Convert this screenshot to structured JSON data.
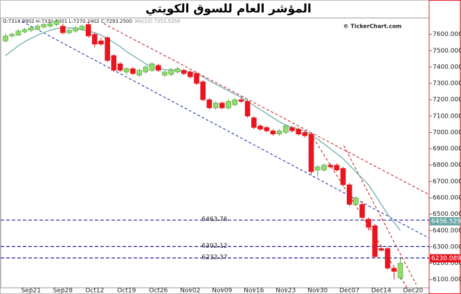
{
  "chart_data": {
    "type": "candlestick",
    "title": "المؤشر العام للسوق الكويتي",
    "ohlc_readout": "O:7318.9902 H:7330.6001 L:7270.2402 C:7293.2500",
    "ma_readout": "MA(10)  7353.5358",
    "watermark": "© TickerChart.com",
    "categories": [
      null,
      null,
      null,
      null,
      "Sep21",
      null,
      null,
      null,
      null,
      "Sep28",
      null,
      null,
      null,
      null,
      "Oct12",
      null,
      null,
      null,
      null,
      "Oct19",
      null,
      null,
      null,
      null,
      "Oct26",
      null,
      null,
      null,
      null,
      "Nov02",
      null,
      null,
      null,
      null,
      "Nov09",
      null,
      null,
      null,
      null,
      "Nov16",
      null,
      null,
      null,
      null,
      "Nov23",
      null,
      null,
      null,
      null,
      "Nov30",
      null,
      null,
      null,
      null,
      "Dec07",
      null,
      null,
      null,
      null,
      "Dec14",
      null,
      null,
      null,
      null,
      "Dec20"
    ],
    "open": [
      7560,
      7590,
      7595,
      7615,
      7625,
      7630,
      7645,
      7650,
      7660,
      7650,
      7610,
      7620,
      7630,
      7660,
      7600,
      7560,
      7580,
      7470,
      7420,
      7370,
      7390,
      7350,
      7370,
      7380,
      7410,
      7350,
      7355,
      7370,
      7380,
      7370,
      7360,
      7310,
      7200,
      7150,
      7180,
      7150,
      7170,
      7200,
      7190,
      7090,
      7040,
      7030,
      7010,
      6990,
      7000,
      7030,
      7020,
      7000,
      6990,
      6770,
      6770,
      6800,
      6800,
      6780,
      6680,
      6560,
      6560,
      6470,
      6430,
      6290,
      6290,
      6170,
      6110,
      null,
      null
    ],
    "high": [
      7605,
      7610,
      7630,
      7640,
      7650,
      7660,
      7670,
      7675,
      7690,
      7665,
      7635,
      7650,
      7660,
      7680,
      7610,
      7580,
      7590,
      7480,
      7430,
      7400,
      7400,
      7390,
      7410,
      7430,
      7420,
      7380,
      7395,
      7400,
      7390,
      7380,
      7370,
      7320,
      7210,
      7190,
      7190,
      7200,
      7210,
      7220,
      7200,
      7100,
      7050,
      7040,
      7020,
      7020,
      7050,
      7040,
      7030,
      7010,
      7000,
      6800,
      6810,
      6810,
      6810,
      6790,
      6690,
      6610,
      6580,
      6480,
      6440,
      6310,
      6300,
      6180,
      6230,
      null,
      null
    ],
    "low": [
      7550,
      7580,
      7590,
      7605,
      7615,
      7625,
      7635,
      7640,
      7650,
      7600,
      7600,
      7610,
      7620,
      7580,
      7520,
      7530,
      7430,
      7370,
      7370,
      7355,
      7350,
      7340,
      7360,
      7370,
      7370,
      7340,
      7345,
      7360,
      7350,
      7330,
      7290,
      7190,
      7140,
      7140,
      7140,
      7140,
      7160,
      7180,
      7090,
      7020,
      7010,
      7000,
      6980,
      6980,
      6990,
      7000,
      6980,
      6970,
      6740,
      6730,
      6760,
      6780,
      6760,
      6670,
      6550,
      6550,
      6470,
      6400,
      6230,
      6270,
      6160,
      6100,
      6100,
      null,
      null
    ],
    "close": [
      7590,
      7600,
      7620,
      7630,
      7640,
      7650,
      7660,
      7665,
      7680,
      7610,
      7625,
      7640,
      7650,
      7590,
      7540,
      7540,
      7440,
      7380,
      7380,
      7390,
      7360,
      7380,
      7400,
      7420,
      7380,
      7370,
      7385,
      7390,
      7360,
      7340,
      7300,
      7200,
      7150,
      7180,
      7150,
      7190,
      7200,
      7190,
      7100,
      7030,
      7020,
      7010,
      6990,
      7010,
      7040,
      7010,
      6990,
      6980,
      6760,
      6790,
      6800,
      6790,
      6770,
      6680,
      6560,
      6600,
      6480,
      6420,
      6240,
      6280,
      6170,
      6150,
      6200,
      null,
      null
    ],
    "up_color": "#8fdc6a",
    "down_color": "#e8141e",
    "ma": {
      "color": "#7fb5b5",
      "values": [
        7470,
        7500,
        7530,
        7555,
        7575,
        7595,
        7610,
        7625,
        7635,
        7640,
        7640,
        7635,
        7630,
        7620,
        7610,
        7595,
        7575,
        7550,
        7525,
        7495,
        7470,
        7445,
        7420,
        7400,
        7390,
        7385,
        7380,
        7378,
        7375,
        7370,
        7360,
        7340,
        7315,
        7295,
        7275,
        7255,
        7235,
        7215,
        7190,
        7165,
        7140,
        7115,
        7090,
        7065,
        7045,
        7030,
        7020,
        7010,
        6985,
        6960,
        6930,
        6900,
        6870,
        6840,
        6800,
        6760,
        6720,
        6680,
        6620,
        6560,
        6500,
        6450,
        6400,
        null,
        null
      ]
    },
    "ylim": [
      6050,
      7700
    ],
    "yticks": [
      {
        "value": 6100,
        "label": "6100.0000"
      },
      {
        "value": 6200,
        "label": "6200.0000"
      },
      {
        "value": 6300,
        "label": "6300.0000"
      },
      {
        "value": 6400,
        "label": "6400.0000"
      },
      {
        "value": 6500,
        "label": "6500.0000"
      },
      {
        "value": 6600,
        "label": "6600.0000"
      },
      {
        "value": 6700,
        "label": "6700.0000"
      },
      {
        "value": 6800,
        "label": "6800.0000"
      },
      {
        "value": 6900,
        "label": "6900.0000"
      },
      {
        "value": 7000,
        "label": "7000.0000"
      },
      {
        "value": 7100,
        "label": "7100.0000"
      },
      {
        "value": 7200,
        "label": "7200.0000"
      },
      {
        "value": 7300,
        "label": "7300.0000"
      },
      {
        "value": 7400,
        "label": "7400.0000"
      },
      {
        "value": 7500,
        "label": "7500.0000"
      },
      {
        "value": 7600,
        "label": "7600.0000"
      }
    ],
    "levels": [
      {
        "value": 6463.76,
        "label": "6463.76",
        "color": "#1a1aa6"
      },
      {
        "value": 6302.12,
        "label": "6302.12",
        "color": "#1a1aa6"
      },
      {
        "value": 6232.37,
        "label": "6232.37",
        "color": "#1a1aa6"
      }
    ],
    "price_tags": [
      {
        "value": 6456.5299,
        "label": "6456.5299",
        "color": "#6aa6a6"
      },
      {
        "value": 6230.0898,
        "label": "6230.0898",
        "color": "#e8141e"
      }
    ],
    "trendlines": [
      {
        "color": "#2233aa",
        "from": [
          2.6,
          7679
        ],
        "to": [
          66.7,
          6350
        ]
      },
      {
        "color": "#cc2222",
        "from": [
          15.4,
          7666
        ],
        "to": [
          66.7,
          6616
        ]
      },
      {
        "color": "#cc2222",
        "from": [
          47.9,
          6993
        ],
        "to": [
          63.4,
          6029
        ]
      },
      {
        "color": "#cc2222",
        "from": [
          53.1,
          6920
        ],
        "to": [
          64.5,
          6070
        ]
      }
    ]
  }
}
